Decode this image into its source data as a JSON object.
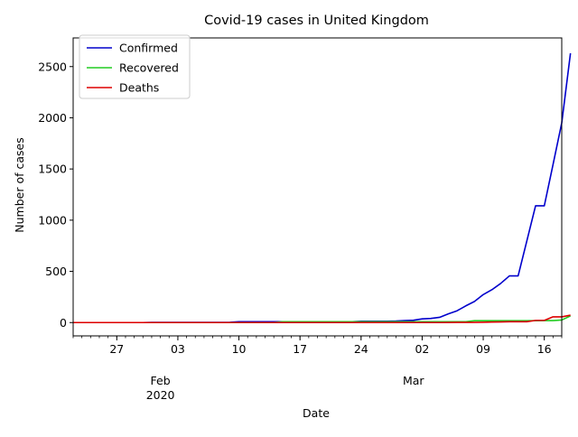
{
  "chart_data": {
    "type": "line",
    "title": "Covid-19 cases in United Kingdom",
    "xlabel": "Date",
    "ylabel": "Number of cases",
    "x_start": "2020-01-22",
    "x_end": "2020-03-18",
    "ylim": [
      -130,
      2780
    ],
    "y_ticks": [
      0,
      500,
      1000,
      1500,
      2000,
      2500
    ],
    "x_major_ticks": [
      {
        "date": "2020-01-27",
        "label": "27"
      },
      {
        "date": "2020-02-01",
        "label": "Feb",
        "sublabel": "2020"
      },
      {
        "date": "2020-02-03",
        "label": "03"
      },
      {
        "date": "2020-02-10",
        "label": "10"
      },
      {
        "date": "2020-02-17",
        "label": "17"
      },
      {
        "date": "2020-02-24",
        "label": "24"
      },
      {
        "date": "2020-03-01",
        "label": "Mar"
      },
      {
        "date": "2020-03-02",
        "label": "02"
      },
      {
        "date": "2020-03-09",
        "label": "09"
      },
      {
        "date": "2020-03-16",
        "label": "16"
      }
    ],
    "grid": false,
    "legend_position": "upper-left",
    "series": [
      {
        "name": "Confirmed",
        "color": "#0000cc",
        "values": [
          0,
          0,
          0,
          0,
          0,
          0,
          0,
          0,
          0,
          2,
          2,
          2,
          2,
          2,
          2,
          2,
          2,
          2,
          3,
          8,
          8,
          9,
          9,
          9,
          9,
          9,
          9,
          9,
          9,
          9,
          9,
          9,
          9,
          13,
          13,
          13,
          13,
          15,
          20,
          23,
          36,
          40,
          51,
          85,
          115,
          163,
          206,
          273,
          321,
          382,
          456,
          456,
          798,
          1140,
          1140,
          1543,
          1950,
          2630
        ],
        "start_date": "2020-01-22"
      },
      {
        "name": "Recovered",
        "color": "#22cc22",
        "values": [
          0,
          0,
          0,
          0,
          0,
          0,
          0,
          0,
          0,
          0,
          0,
          0,
          0,
          0,
          0,
          0,
          0,
          0,
          0,
          0,
          0,
          0,
          0,
          0,
          8,
          8,
          8,
          8,
          8,
          8,
          8,
          8,
          8,
          8,
          8,
          8,
          8,
          8,
          8,
          8,
          8,
          8,
          8,
          8,
          8,
          8,
          18,
          18,
          18,
          18,
          18,
          18,
          18,
          18,
          19,
          19,
          25,
          65
        ],
        "start_date": "2020-01-22"
      },
      {
        "name": "Deaths",
        "color": "#dd0000",
        "values": [
          0,
          0,
          0,
          0,
          0,
          0,
          0,
          0,
          0,
          0,
          0,
          0,
          0,
          0,
          0,
          0,
          0,
          0,
          0,
          0,
          0,
          0,
          0,
          0,
          0,
          0,
          0,
          0,
          0,
          0,
          0,
          0,
          0,
          0,
          0,
          0,
          0,
          0,
          0,
          0,
          0,
          0,
          0,
          1,
          2,
          2,
          2,
          3,
          5,
          6,
          8,
          8,
          8,
          21,
          21,
          56,
          56,
          72
        ],
        "start_date": "2020-01-22"
      }
    ]
  }
}
